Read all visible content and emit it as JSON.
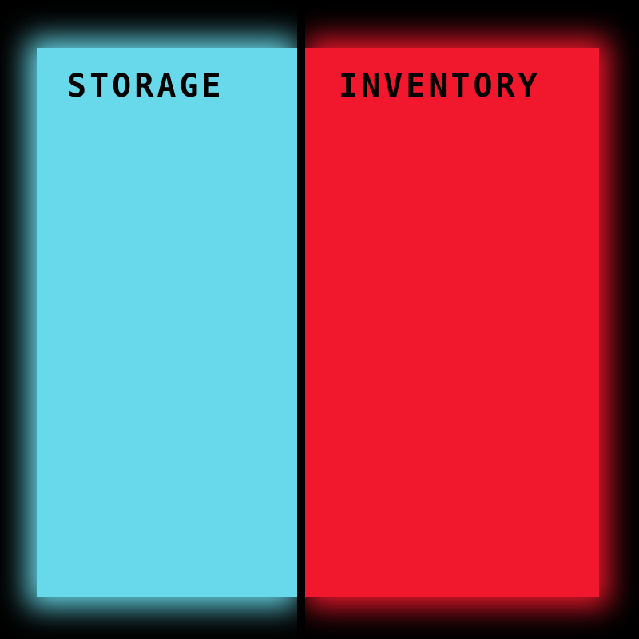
{
  "panels": {
    "storage": {
      "title": "STORAGE",
      "color": "#67d9ea"
    },
    "inventory": {
      "title": "INVENTORY",
      "color": "#f1172c"
    }
  },
  "colors": {
    "background": "#000000",
    "divider": "#000000",
    "title_text": "#000000"
  }
}
